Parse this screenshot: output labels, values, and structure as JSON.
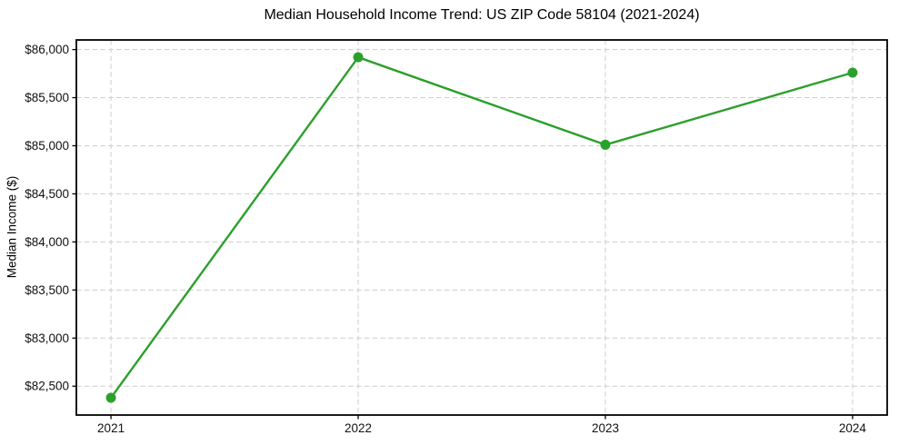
{
  "chart_data": {
    "type": "line",
    "title": "Median Household Income Trend: US ZIP Code 58104 (2021-2024)",
    "xlabel": "",
    "ylabel": "Median Income ($)",
    "x": [
      2021,
      2022,
      2023,
      2024
    ],
    "xtick_labels": [
      "2021",
      "2022",
      "2023",
      "2024"
    ],
    "series": [
      {
        "name": "median-household-income",
        "values": [
          82380,
          85920,
          85010,
          85760
        ],
        "color": "#2ca02c"
      }
    ],
    "xlim": [
      2020.86,
      2024.14
    ],
    "ylim": [
      82200,
      86100
    ],
    "yticks": [
      82500,
      83000,
      83500,
      84000,
      84500,
      85000,
      85500,
      86000
    ],
    "ytick_labels": [
      "$82,500",
      "$83,000",
      "$83,500",
      "$84,000",
      "$84,500",
      "$85,000",
      "$85,500",
      "$86,000"
    ],
    "grid": true,
    "grid_color": "#cdcdcd",
    "axis_color": "#000000",
    "tick_text_color": "#111111",
    "background": "#ffffff",
    "legend": "none",
    "marker": "circle",
    "marker_diameter": 11,
    "line_width": 2.4
  }
}
